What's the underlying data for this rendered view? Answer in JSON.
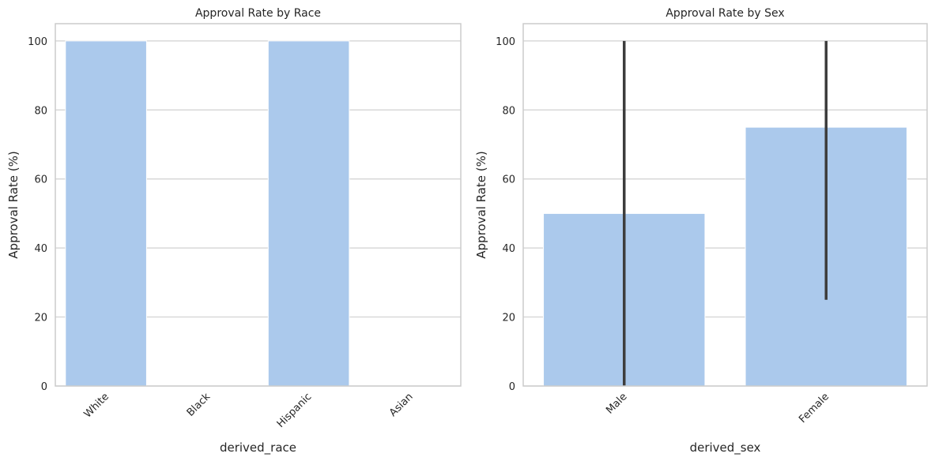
{
  "colors": {
    "bar": "#abc9ec",
    "grid": "#d0d0d0",
    "spine": "#cccccc",
    "error_bar": "#3d3d3d",
    "text": "#262626"
  },
  "chart_data": [
    {
      "type": "bar",
      "title": "Approval Rate by Race",
      "xlabel": "derived_race",
      "ylabel": "Approval Rate (%)",
      "categories": [
        "White",
        "Black",
        "Hispanic",
        "Asian"
      ],
      "values": [
        100,
        0,
        100,
        0
      ],
      "ylim": [
        0,
        105
      ],
      "yticks": [
        "0",
        "20",
        "40",
        "60",
        "80",
        "100"
      ],
      "grid": "horizontal",
      "xtick_rotation": 45
    },
    {
      "type": "bar",
      "title": "Approval Rate by Sex",
      "xlabel": "derived_sex",
      "ylabel": "Approval Rate (%)",
      "categories": [
        "Male",
        "Female"
      ],
      "values": [
        50,
        75
      ],
      "error_bars": [
        [
          0,
          100
        ],
        [
          25,
          100
        ]
      ],
      "ylim": [
        0,
        105
      ],
      "yticks": [
        "0",
        "20",
        "40",
        "60",
        "80",
        "100"
      ],
      "grid": "horizontal",
      "xtick_rotation": 45
    }
  ]
}
